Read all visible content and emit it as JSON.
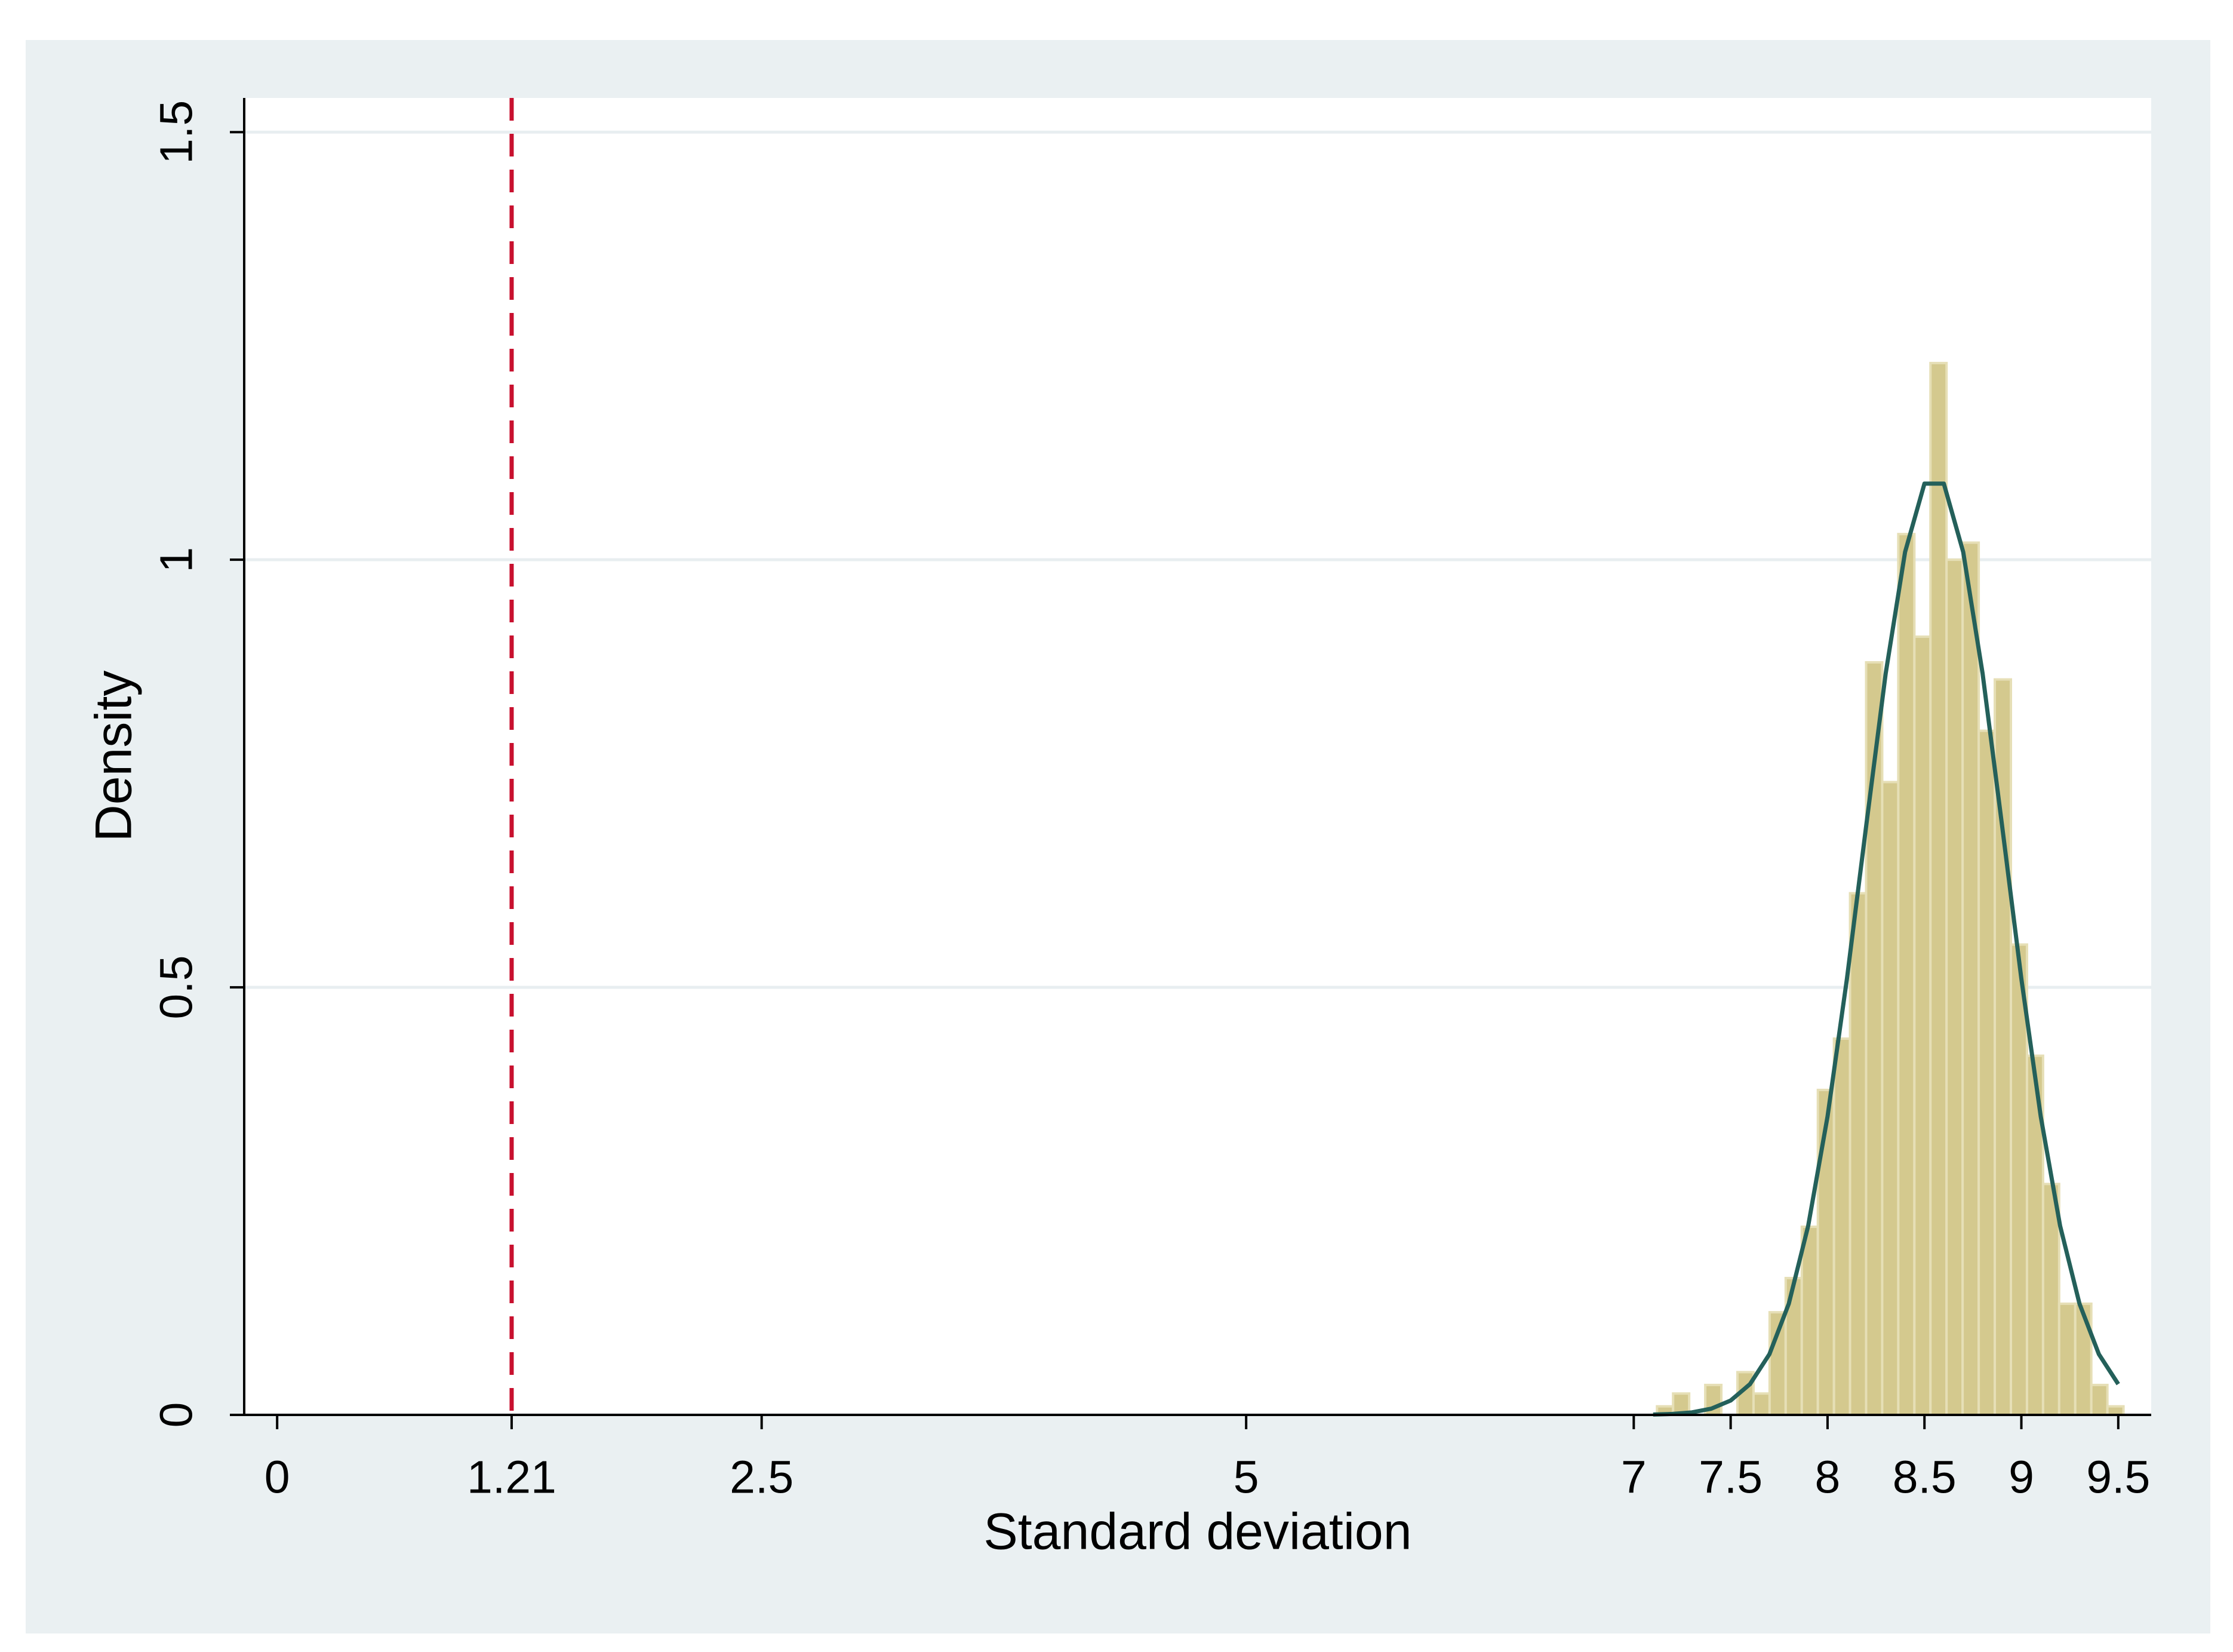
{
  "chart_data": {
    "type": "histogram",
    "xlabel": "Standard deviation",
    "ylabel": "Density",
    "bins": [
      7.12,
      7.203,
      7.286,
      7.369,
      7.452,
      7.535,
      7.618,
      7.701,
      7.784,
      7.867,
      7.95,
      8.033,
      8.116,
      8.199,
      8.282,
      8.365,
      8.448,
      8.531,
      8.614,
      8.697,
      8.78,
      8.863,
      8.946,
      9.029,
      9.112,
      9.195,
      9.278,
      9.361,
      9.444,
      9.527
    ],
    "values": [
      0.01,
      0.025,
      0,
      0.035,
      0,
      0.05,
      0.025,
      0.12,
      0.16,
      0.22,
      0.38,
      0.44,
      0.61,
      0.88,
      0.74,
      1.03,
      0.91,
      1.23,
      1.0,
      1.02,
      0.8,
      0.86,
      0.55,
      0.42,
      0.27,
      0.13,
      0.13,
      0.035,
      0.01
    ],
    "color": "#d4c98e",
    "xlim": [
      -0.17,
      9.67
    ],
    "ylim": [
      0,
      1.54
    ],
    "xticks": [
      0,
      1.21,
      2.5,
      5,
      7,
      7.5,
      8,
      8.5,
      9,
      9.5
    ],
    "yticks": [
      0,
      0.5,
      1,
      1.5
    ],
    "grid": true,
    "overlay": {
      "type": "line",
      "color": "#24605a",
      "x": [
        7.1,
        7.2,
        7.3,
        7.4,
        7.5,
        7.6,
        7.7,
        7.8,
        7.9,
        8.0,
        8.1,
        8.2,
        8.3,
        8.4,
        8.5,
        8.6,
        8.7,
        8.8,
        8.9,
        9.0,
        9.1,
        9.2,
        9.3,
        9.4,
        9.5
      ],
      "values": [
        0.0004,
        0.0011,
        0.0029,
        0.0073,
        0.0168,
        0.036,
        0.071,
        0.13,
        0.221,
        0.349,
        0.51,
        0.69,
        0.867,
        1.009,
        1.089,
        1.089,
        1.009,
        0.867,
        0.69,
        0.51,
        0.349,
        0.221,
        0.13,
        0.071,
        0.036
      ]
    },
    "reference_line": {
      "x": 1.21,
      "color": "#c8102e",
      "style": "dashed"
    }
  }
}
